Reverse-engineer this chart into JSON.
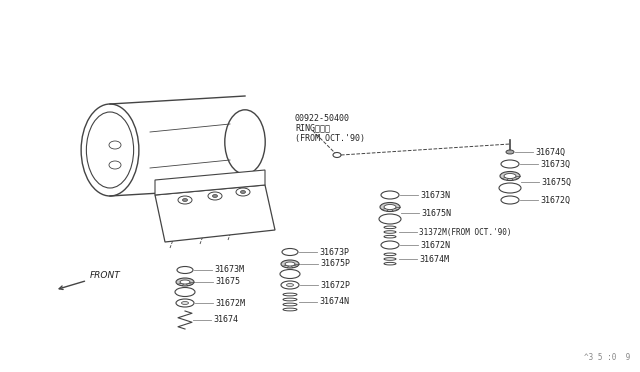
{
  "bg_color": "#ffffff",
  "line_color": "#444444",
  "text_color": "#222222",
  "watermark": "^3 5 :0  9",
  "front_label": "FRONT",
  "ring_label": "00922-50400\nRINGリング\n(FROM OCT.'90)"
}
